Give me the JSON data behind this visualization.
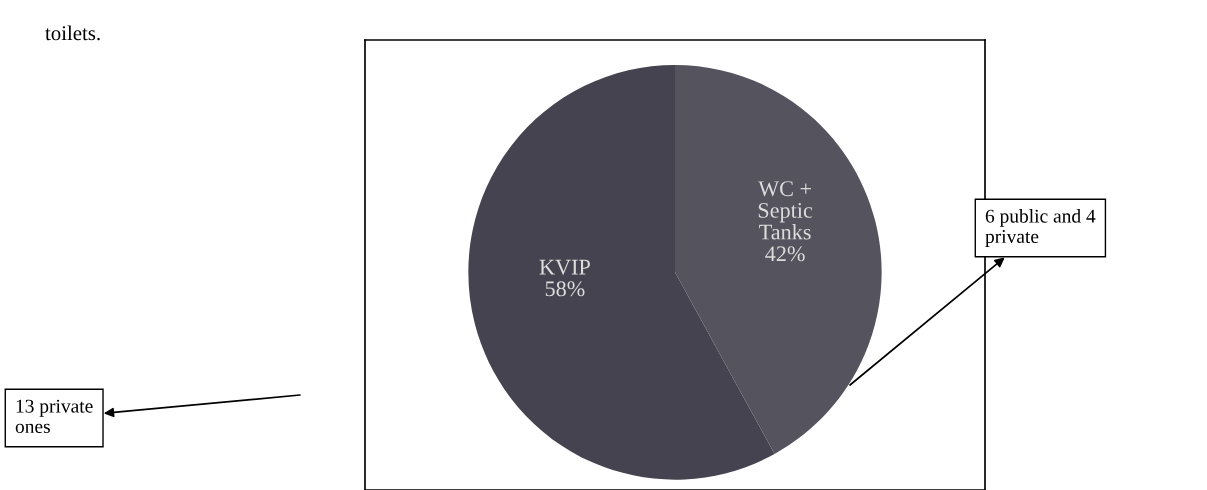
{
  "chart_data": {
    "type": "pie",
    "categories": [
      "KVIP",
      "WC +\nSeptic\nTanks"
    ],
    "values": [
      58,
      42
    ],
    "value_labels": [
      "58%",
      "42%"
    ],
    "colors": [
      "#45434f",
      "#55535d"
    ],
    "annotations": [
      "toilets.",
      "13 private\nones",
      "6 public and 4\nprivate"
    ]
  }
}
